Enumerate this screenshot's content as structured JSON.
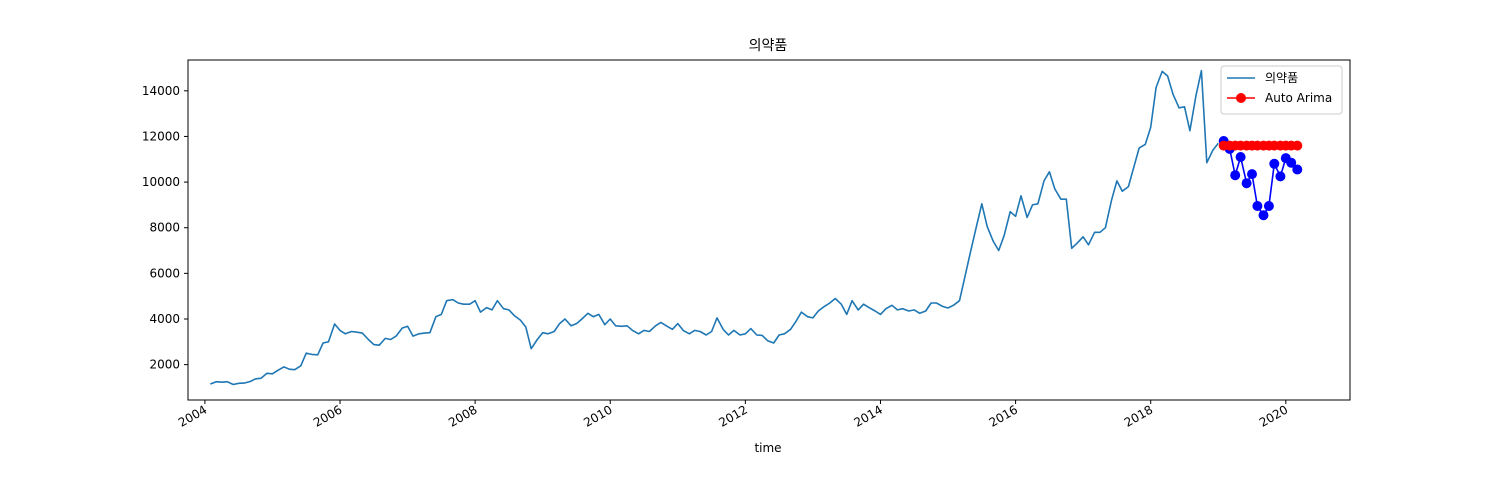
{
  "chart_data": {
    "type": "line",
    "title": "의약품",
    "xlabel": "time",
    "ylabel": "",
    "xlim": [
      2003.75,
      2020.95
    ],
    "ylim": [
      450,
      15350
    ],
    "x_ticks": [
      2004,
      2006,
      2008,
      2010,
      2012,
      2014,
      2016,
      2018,
      2020
    ],
    "y_ticks": [
      2000,
      4000,
      6000,
      8000,
      10000,
      12000,
      14000
    ],
    "grid": false,
    "legend_position": "top-right",
    "series": [
      {
        "name": "의약품",
        "color": "#1f77b4",
        "x": [
          2004.08,
          2004.17,
          2004.25,
          2004.33,
          2004.42,
          2004.5,
          2004.58,
          2004.67,
          2004.75,
          2004.83,
          2004.92,
          2005.0,
          2005.08,
          2005.17,
          2005.25,
          2005.33,
          2005.42,
          2005.5,
          2005.58,
          2005.67,
          2005.75,
          2005.83,
          2005.92,
          2006.0,
          2006.08,
          2006.17,
          2006.25,
          2006.33,
          2006.42,
          2006.5,
          2006.58,
          2006.67,
          2006.75,
          2006.83,
          2006.92,
          2007.0,
          2007.08,
          2007.17,
          2007.25,
          2007.33,
          2007.42,
          2007.5,
          2007.58,
          2007.67,
          2007.75,
          2007.83,
          2007.92,
          2008.0,
          2008.08,
          2008.17,
          2008.25,
          2008.33,
          2008.42,
          2008.5,
          2008.58,
          2008.67,
          2008.75,
          2008.83,
          2008.92,
          2009.0,
          2009.08,
          2009.17,
          2009.25,
          2009.33,
          2009.42,
          2009.5,
          2009.58,
          2009.67,
          2009.75,
          2009.83,
          2009.92,
          2010.0,
          2010.08,
          2010.17,
          2010.25,
          2010.33,
          2010.42,
          2010.5,
          2010.58,
          2010.67,
          2010.75,
          2010.83,
          2010.92,
          2011.0,
          2011.08,
          2011.17,
          2011.25,
          2011.33,
          2011.42,
          2011.5,
          2011.58,
          2011.67,
          2011.75,
          2011.83,
          2011.92,
          2012.0,
          2012.08,
          2012.17,
          2012.25,
          2012.33,
          2012.42,
          2012.5,
          2012.58,
          2012.67,
          2012.75,
          2012.83,
          2012.92,
          2013.0,
          2013.08,
          2013.17,
          2013.25,
          2013.33,
          2013.42,
          2013.5,
          2013.58,
          2013.67,
          2013.75,
          2013.83,
          2013.92,
          2014.0,
          2014.08,
          2014.17,
          2014.25,
          2014.33,
          2014.42,
          2014.5,
          2014.58,
          2014.67,
          2014.75,
          2014.83,
          2014.92,
          2015.0,
          2015.08,
          2015.17,
          2015.25,
          2015.33,
          2015.42,
          2015.5,
          2015.58,
          2015.67,
          2015.75,
          2015.83,
          2015.92,
          2016.0,
          2016.08,
          2016.17,
          2016.25,
          2016.33,
          2016.42,
          2016.5,
          2016.58,
          2016.67,
          2016.75,
          2016.83,
          2016.92,
          2017.0,
          2017.08,
          2017.17,
          2017.25,
          2017.33,
          2017.42,
          2017.5,
          2017.58,
          2017.67,
          2017.75,
          2017.83,
          2017.92,
          2018.0,
          2018.08,
          2018.17,
          2018.25,
          2018.33,
          2018.42,
          2018.5,
          2018.58,
          2018.67,
          2018.75,
          2018.83,
          2018.92,
          2019.0
        ],
        "y": [
          1150,
          1250,
          1230,
          1250,
          1130,
          1180,
          1190,
          1260,
          1380,
          1400,
          1620,
          1600,
          1750,
          1900,
          1800,
          1780,
          1950,
          2500,
          2450,
          2430,
          2950,
          3000,
          3780,
          3500,
          3350,
          3450,
          3420,
          3380,
          3100,
          2880,
          2850,
          3150,
          3100,
          3250,
          3600,
          3680,
          3250,
          3350,
          3380,
          3400,
          4100,
          4200,
          4800,
          4850,
          4700,
          4650,
          4650,
          4800,
          4300,
          4500,
          4400,
          4800,
          4450,
          4400,
          4150,
          3950,
          3650,
          2700,
          3100,
          3400,
          3350,
          3450,
          3800,
          4000,
          3700,
          3800,
          4000,
          4250,
          4100,
          4200,
          3750,
          4000,
          3700,
          3680,
          3700,
          3500,
          3350,
          3500,
          3450,
          3700,
          3850,
          3700,
          3550,
          3800,
          3500,
          3350,
          3500,
          3450,
          3300,
          3450,
          4050,
          3550,
          3300,
          3500,
          3300,
          3350,
          3580,
          3300,
          3280,
          3050,
          2950,
          3300,
          3350,
          3550,
          3900,
          4300,
          4100,
          4050,
          4350,
          4550,
          4700,
          4900,
          4650,
          4200,
          4800,
          4400,
          4650,
          4500,
          4350,
          4200,
          4450,
          4600,
          4400,
          4450,
          4350,
          4400,
          4250,
          4350,
          4700,
          4700,
          4550,
          4480,
          4600,
          4800,
          5850,
          6900,
          8050,
          9050,
          8050,
          7400,
          7000,
          7650,
          8700,
          8500,
          9400,
          8450,
          9000,
          9050,
          10050,
          10450,
          9700,
          9250,
          9250,
          7100,
          7350,
          7600,
          7250,
          7800,
          7800,
          8000,
          9200,
          10050,
          9600,
          9800,
          10650,
          11500,
          11650,
          12400,
          14150,
          14850,
          14650,
          13850,
          13250,
          13300,
          12250,
          13800,
          14880,
          10850,
          11400,
          11700
        ]
      },
      {
        "name": "",
        "color": "#0000ff",
        "x": [
          2019.08,
          2019.17,
          2019.25,
          2019.33,
          2019.42,
          2019.5,
          2019.58,
          2019.67,
          2019.75,
          2019.83,
          2019.92,
          2020.0,
          2020.08,
          2020.17
        ],
        "y": [
          11800,
          11450,
          10300,
          11100,
          9950,
          10350,
          8950,
          8550,
          8950,
          10800,
          10250,
          11050,
          10850,
          10550
        ]
      },
      {
        "name": "Auto Arima",
        "color": "#ff0000",
        "x": [
          2019.08,
          2019.17,
          2019.25,
          2019.33,
          2019.42,
          2019.5,
          2019.58,
          2019.67,
          2019.75,
          2019.83,
          2019.92,
          2020.0,
          2020.08,
          2020.17
        ],
        "y": [
          11600,
          11600,
          11600,
          11600,
          11600,
          11600,
          11600,
          11600,
          11600,
          11600,
          11600,
          11600,
          11600,
          11600
        ]
      }
    ]
  }
}
